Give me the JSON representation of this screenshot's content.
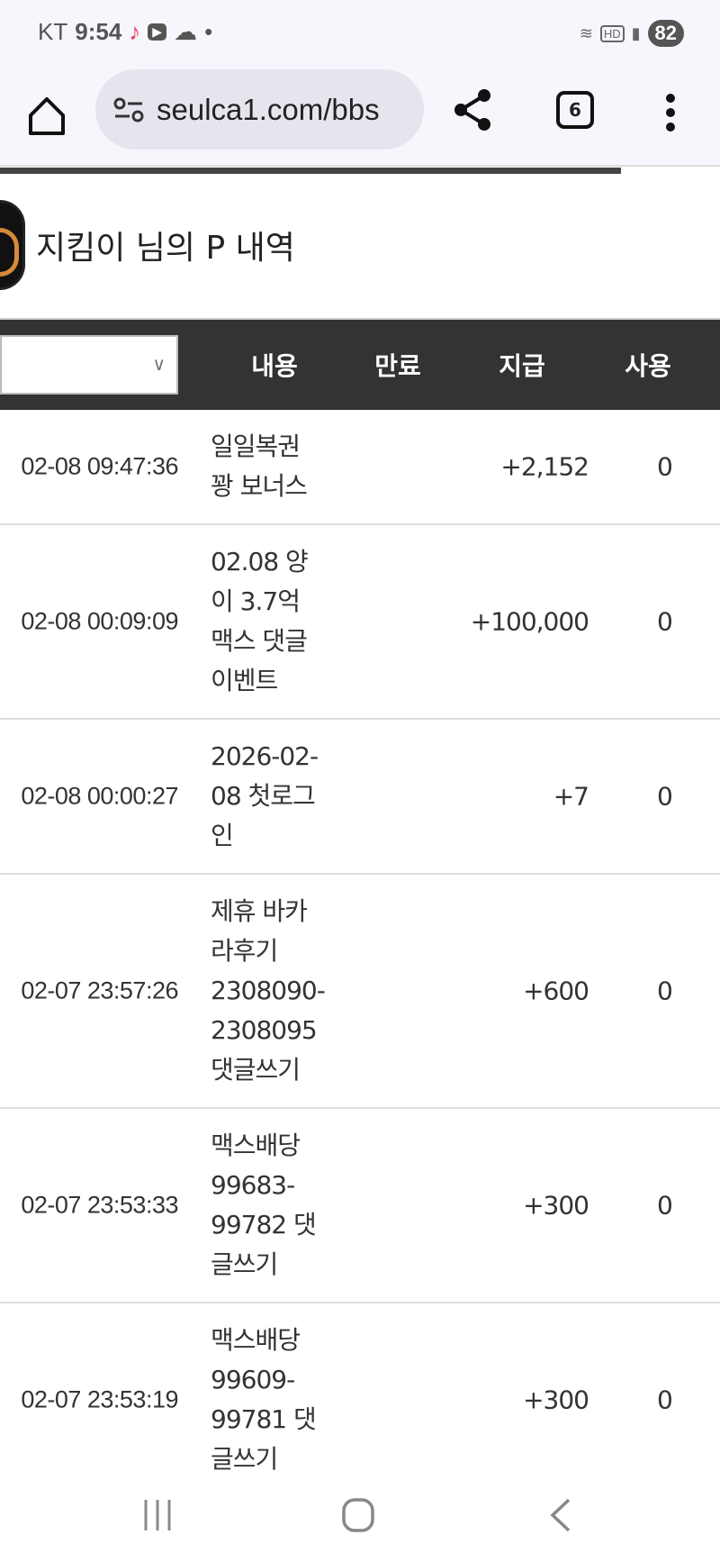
{
  "status_bar": {
    "carrier": "KT",
    "time": "9:54",
    "battery": "82"
  },
  "browser": {
    "url": "seulca1.com/bbs",
    "tab_count": "6"
  },
  "page": {
    "title": "지킴이 님의 P 내역"
  },
  "table": {
    "headers": [
      "내용",
      "만료",
      "지급",
      "사용"
    ],
    "rows": [
      {
        "date": "02-08 09:47:36",
        "content": [
          "일일복권",
          "꽝 보너스"
        ],
        "amount": "+2,152",
        "used": "0"
      },
      {
        "date": "02-08 00:09:09",
        "content": [
          "02.08 양",
          "이 3.7억",
          "맥스 댓글",
          "이벤트"
        ],
        "amount": "+100,000",
        "used": "0"
      },
      {
        "date": "02-08 00:00:27",
        "content": [
          "2026-02-",
          "08 첫로그",
          "인"
        ],
        "amount": "+7",
        "used": "0"
      },
      {
        "date": "02-07 23:57:26",
        "content": [
          "제휴 바카",
          "라후기",
          "2308090-",
          "2308095",
          "댓글쓰기"
        ],
        "amount": "+600",
        "used": "0"
      },
      {
        "date": "02-07 23:53:33",
        "content": [
          "맥스배당",
          "99683-",
          "99782 댓",
          "글쓰기"
        ],
        "amount": "+300",
        "used": "0"
      },
      {
        "date": "02-07 23:53:19",
        "content": [
          "맥스배당",
          "99609-",
          "99781 댓",
          "글쓰기"
        ],
        "amount": "+300",
        "used": "0"
      }
    ]
  }
}
